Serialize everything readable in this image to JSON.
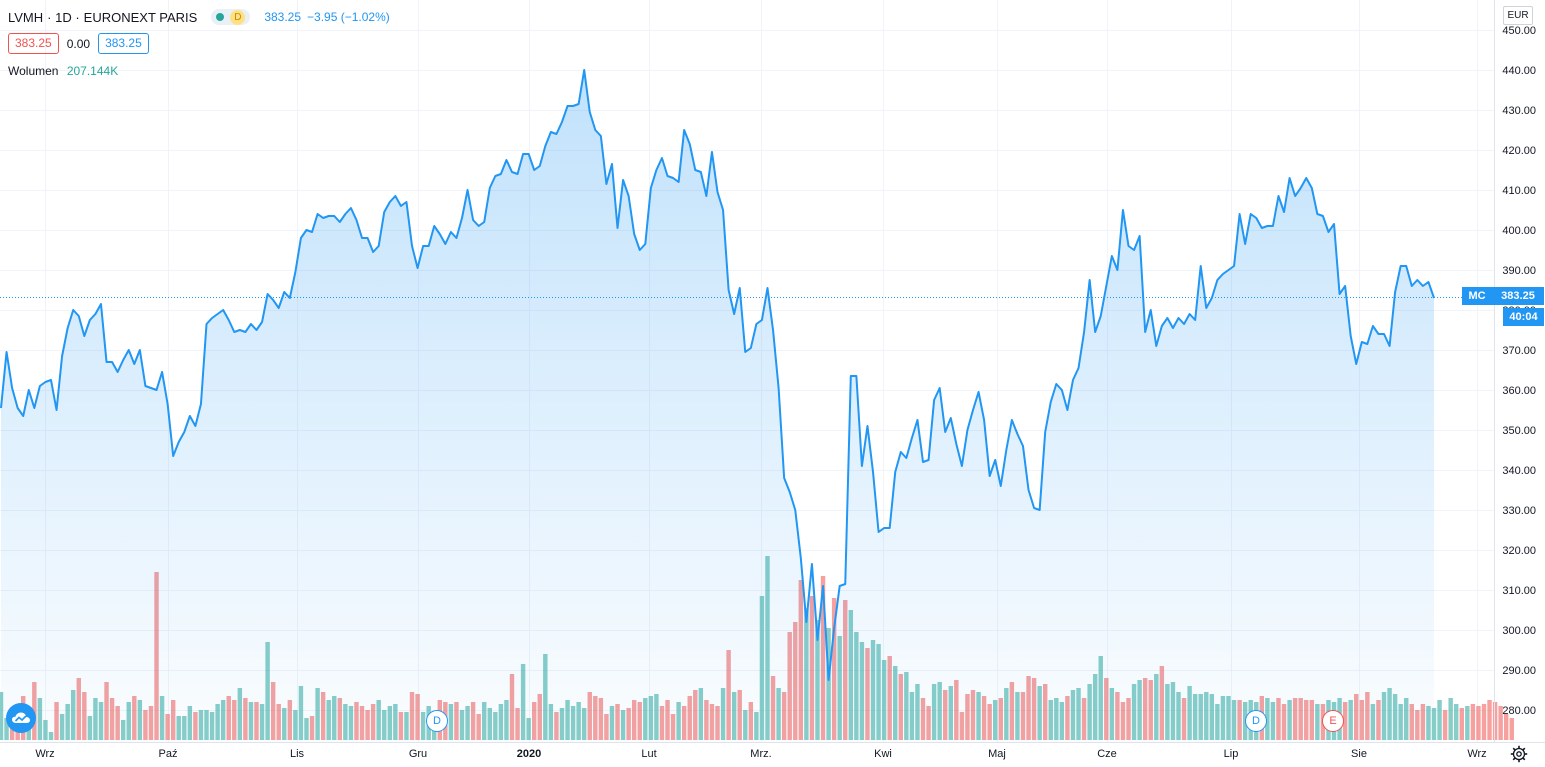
{
  "legend": {
    "symbol": "LVMH",
    "interval": "· 1D ·",
    "exchange": "EURONEXT PARIS",
    "market_badge": "D",
    "last": "383.25",
    "change": "−3.95 (−1.02%)"
  },
  "quotes": {
    "bid": "383.25",
    "spread": "0.00",
    "ask": "383.25"
  },
  "volume_legend": {
    "label": "Wolumen",
    "value": "207.144K"
  },
  "currency": "EUR",
  "price_tag": {
    "symbol": "MC",
    "price": "383.25",
    "countdown": "40:04"
  },
  "events": {
    "dividend_1": "D",
    "dividend_2": "D",
    "earnings": "E"
  },
  "icons": {
    "logo": "tradingview-cloud-icon",
    "settings": "gear-icon"
  },
  "colors": {
    "line": "#2196f3",
    "area": "#2196f3",
    "vol_up": "#26a69a",
    "vol_down": "#ef5350",
    "grid": "#f0f3fa"
  },
  "chart_data": {
    "type": "area",
    "y_axis": {
      "min": 275,
      "max": 450,
      "ticks": [
        450,
        440,
        430,
        420,
        410,
        400,
        390,
        380,
        370,
        360,
        350,
        340,
        330,
        320,
        310,
        300,
        290,
        280
      ]
    },
    "x_axis": {
      "labels": [
        "Wrz",
        "Paź",
        "Lis",
        "Gru",
        "2020",
        "Lut",
        "Mrz.",
        "Kwi",
        "Maj",
        "Cze",
        "Lip",
        "Sie",
        "Wrz"
      ]
    },
    "last_price": 383.25,
    "series": [
      {
        "values": [
          355.5,
          369.5,
          360.5,
          355.5,
          353.5,
          360,
          355.5,
          361,
          362,
          362.5,
          355,
          368.5,
          375.5,
          380,
          378.5,
          373.5,
          377.5,
          379,
          381.5,
          367,
          367,
          364.5,
          367.5,
          370,
          366.5,
          370,
          361,
          360.5,
          360,
          364.5,
          356.5,
          343.5,
          347,
          349.5,
          353.5,
          351,
          356.5,
          376.5,
          378,
          379,
          380,
          377.5,
          374.5,
          375,
          374.5,
          376.5,
          375,
          377,
          384,
          382.5,
          380.5,
          384.5,
          383,
          389.5,
          398,
          400,
          399.5,
          404,
          403,
          403.5,
          403.5,
          402,
          404,
          405.5,
          402.5,
          398,
          398,
          394.5,
          396,
          404.5,
          407,
          408.5,
          406,
          407,
          396,
          390.5,
          396,
          396,
          401,
          399,
          396.5,
          399.5,
          398,
          403,
          410,
          402.5,
          401,
          402,
          410.5,
          413.5,
          414,
          417.5,
          414.5,
          414,
          419,
          419,
          415,
          416,
          421,
          424.5,
          424,
          427,
          431,
          431,
          431.5,
          440,
          429.5,
          425,
          423.5,
          411.5,
          416.5,
          400.5,
          412.5,
          408.5,
          399,
          395,
          396.5,
          410.5,
          415,
          418,
          413.5,
          413,
          412,
          425,
          421.5,
          415,
          414.5,
          408.5,
          419.5,
          409.5,
          405,
          385,
          379,
          385.5,
          369.5,
          370.5,
          376.5,
          377.5,
          385.5,
          375,
          360.5,
          338,
          334.5,
          330,
          318,
          302,
          316.5,
          297.5,
          311,
          287.5,
          300.5,
          311,
          311.5,
          363.5,
          363.5,
          341,
          351,
          339.5,
          324.5,
          325.5,
          325.5,
          339.5,
          344.5,
          343,
          348,
          352.5,
          342,
          342.5,
          357.5,
          360.5,
          349.5,
          353,
          346.5,
          341,
          350,
          355,
          359.5,
          352.5,
          338.5,
          342.5,
          336,
          345,
          352.5,
          349,
          346,
          335,
          330.5,
          330,
          349.5,
          357,
          361.5,
          360,
          355,
          362.5,
          365.5,
          374.5,
          387.5,
          374.5,
          378.5,
          386,
          393.5,
          390,
          405,
          396,
          395,
          398.5,
          374.5,
          380,
          371,
          376,
          378,
          375.5,
          378,
          376.5,
          379,
          377.5,
          391,
          380.5,
          383,
          387.5,
          389,
          390,
          391,
          404,
          396.5,
          404,
          403,
          400.5,
          401,
          401,
          408.5,
          404.5,
          413,
          408.5,
          410.5,
          413,
          410.5,
          404,
          403.5,
          399.5,
          401.5,
          384,
          386,
          373.5,
          366.5,
          372,
          371.5,
          376,
          374,
          374,
          371,
          384.5,
          391,
          391,
          386,
          387.5,
          386,
          387,
          383
        ]
      },
      {
        "name": "Wolumen",
        "values": [
          48,
          22,
          20,
          36,
          44,
          30,
          58,
          42,
          20,
          8,
          38,
          26,
          36,
          50,
          62,
          48,
          24,
          42,
          38,
          58,
          42,
          34,
          20,
          38,
          44,
          40,
          30,
          34,
          168,
          44,
          26,
          40,
          24,
          24,
          34,
          28,
          30,
          30,
          28,
          36,
          40,
          44,
          40,
          52,
          42,
          38,
          38,
          36,
          98,
          58,
          36,
          32,
          40,
          30,
          54,
          22,
          24,
          52,
          48,
          40,
          44,
          42,
          36,
          34,
          38,
          34,
          30,
          36,
          40,
          30,
          34,
          36,
          28,
          28,
          48,
          46,
          28,
          34,
          26,
          40,
          38,
          36,
          38,
          30,
          34,
          38,
          26,
          38,
          32,
          28,
          36,
          40,
          66,
          32,
          76,
          22,
          38,
          46,
          86,
          36,
          28,
          32,
          40,
          34,
          38,
          32,
          48,
          44,
          42,
          26,
          34,
          36,
          30,
          32,
          40,
          38,
          42,
          44,
          46,
          34,
          40,
          26,
          38,
          34,
          44,
          50,
          52,
          40,
          36,
          34,
          52,
          90,
          48,
          50,
          30,
          38,
          28,
          144,
          184,
          64,
          52,
          48,
          108,
          118,
          160,
          132,
          144,
          120,
          164,
          112,
          142,
          104,
          140,
          130,
          108,
          98,
          92,
          100,
          96,
          80,
          84,
          74,
          66,
          68,
          48,
          56,
          42,
          34,
          56,
          58,
          50,
          54,
          60,
          28,
          46,
          50,
          48,
          44,
          36,
          40,
          42,
          52,
          58,
          48,
          48,
          64,
          62,
          54,
          56,
          40,
          42,
          38,
          44,
          50,
          52,
          42,
          56,
          66,
          84,
          62,
          52,
          48,
          38,
          42,
          56,
          60,
          62,
          60,
          66,
          74,
          56,
          58,
          48,
          42,
          54,
          46,
          46,
          48,
          46,
          36,
          44,
          44,
          40,
          40,
          38,
          40,
          38,
          44,
          42,
          38,
          42,
          36,
          40,
          42,
          42,
          40,
          40,
          36,
          36,
          40,
          38,
          42,
          38,
          40,
          46,
          40,
          48,
          36,
          40,
          48,
          52,
          46,
          36,
          42,
          36,
          30,
          36,
          34,
          32,
          40,
          30,
          42,
          36,
          32,
          34,
          36,
          34,
          36,
          40,
          38,
          34,
          26,
          22
        ]
      }
    ],
    "volume_direction": [
      1,
      1,
      0,
      0,
      0,
      1,
      0,
      1,
      1,
      1,
      0,
      1,
      1,
      1,
      0,
      0,
      1,
      1,
      1,
      0,
      0,
      0,
      1,
      1,
      0,
      1,
      0,
      0,
      0,
      1,
      0,
      0,
      1,
      1,
      1,
      0,
      1,
      1,
      1,
      1,
      1,
      0,
      0,
      1,
      0,
      1,
      0,
      1,
      1,
      0,
      0,
      1,
      0,
      1,
      1,
      1,
      0,
      1,
      0,
      1,
      1,
      0,
      1,
      1,
      0,
      0,
      0,
      0,
      1,
      1,
      1,
      1,
      0,
      1,
      0,
      0,
      1,
      1,
      1,
      0,
      0,
      1,
      0,
      1,
      1,
      0,
      0,
      1,
      1,
      1,
      1,
      1,
      0,
      0,
      1,
      1,
      0,
      0,
      1,
      1,
      0,
      1,
      1,
      1,
      1,
      1,
      0,
      0,
      0,
      0,
      1,
      0,
      1,
      0,
      0,
      0,
      1,
      1,
      1,
      0,
      0,
      0,
      1,
      0,
      0,
      0,
      1,
      0,
      0,
      0,
      1,
      0,
      1,
      0,
      1,
      0,
      1,
      1,
      1,
      0,
      1,
      0,
      0,
      0,
      0,
      1,
      0,
      1,
      0,
      1,
      0,
      1,
      0,
      1,
      1,
      1,
      0,
      1,
      1,
      1,
      0,
      1,
      0,
      1,
      1,
      1,
      0,
      0,
      1,
      1,
      0,
      1,
      0,
      0,
      0,
      0,
      1,
      0,
      0,
      1,
      0,
      1,
      0,
      1,
      0,
      0,
      0,
      1,
      0,
      1,
      1,
      1,
      0,
      1,
      1,
      0,
      1,
      1,
      1,
      0,
      1,
      0,
      0,
      0,
      1,
      1,
      0,
      0,
      1,
      0,
      1,
      1,
      1,
      0,
      1,
      1,
      1,
      1,
      1,
      1,
      1,
      1,
      1,
      0,
      1,
      1,
      1,
      0,
      1,
      1,
      0,
      0,
      1,
      0,
      0,
      0,
      0,
      1,
      0,
      1,
      1,
      1,
      0,
      1,
      0,
      0,
      0,
      1,
      0,
      1,
      1,
      1,
      1,
      1,
      0,
      0,
      0,
      1,
      1,
      1,
      0,
      1,
      1,
      0,
      1
    ]
  }
}
